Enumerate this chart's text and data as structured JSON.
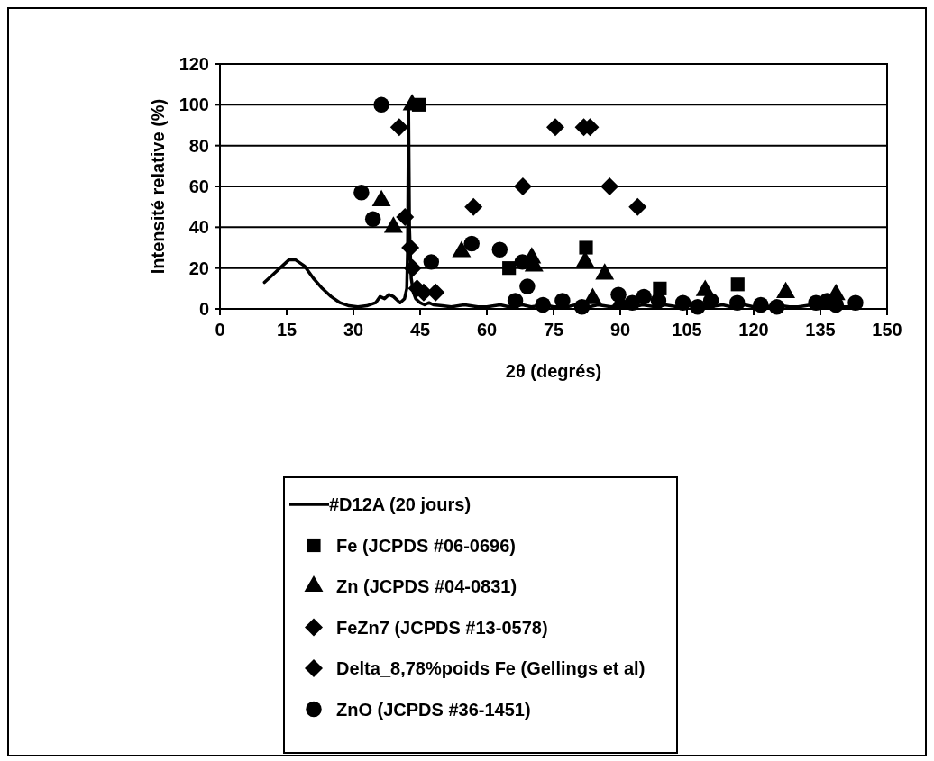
{
  "chart_data": {
    "type": "scatter",
    "xlabel": "2θ (degrés)",
    "ylabel": "Intensité relative (%)",
    "xlim": [
      0,
      150
    ],
    "xticks": [
      0,
      15,
      30,
      45,
      60,
      75,
      90,
      105,
      120,
      135,
      150
    ],
    "ylim": [
      0,
      120
    ],
    "yticks": [
      0,
      20,
      40,
      60,
      80,
      100,
      120
    ],
    "grid": "y",
    "legend": "bottom",
    "series": [
      {
        "name": "#D12A (20 jours)",
        "type": "line",
        "marker": "none",
        "color": "#000000",
        "x": [
          10,
          12,
          14,
          15.5,
          17,
          19,
          21,
          23,
          25,
          27,
          29,
          31,
          33,
          35,
          36,
          37,
          38,
          39,
          40,
          40.5,
          41.5,
          42,
          42.2,
          42.4,
          42.6,
          43,
          43.5,
          44,
          45,
          46,
          47,
          48,
          50,
          52,
          55,
          58,
          60,
          63,
          65,
          68,
          70,
          73,
          75,
          78,
          80,
          83,
          85,
          88,
          90,
          93,
          95,
          98,
          100,
          103,
          105,
          108,
          110,
          113,
          115,
          118,
          120,
          123,
          125,
          128,
          130,
          133,
          135,
          138,
          140,
          143
        ],
        "values": [
          13,
          17,
          21,
          24,
          24,
          21,
          15,
          10,
          6,
          3,
          1.5,
          1,
          1.5,
          3,
          6,
          5,
          7,
          6,
          4,
          3,
          5,
          10,
          30,
          100,
          40,
          15,
          8,
          5,
          3,
          2,
          3,
          2,
          1.5,
          1,
          2,
          1,
          1,
          2,
          1,
          2,
          1,
          2,
          1,
          1,
          2,
          1,
          2,
          1,
          2,
          1,
          2,
          1,
          2,
          1,
          2,
          1,
          1,
          2,
          1,
          2,
          1,
          1,
          2,
          1,
          1,
          2,
          1,
          2,
          1,
          1
        ]
      },
      {
        "name": "Fe (JCPDS #06-0696)",
        "marker": "square",
        "color": "#000000",
        "x": [
          44.7,
          65,
          82.3,
          98.9,
          116.4
        ],
        "values": [
          100,
          20,
          30,
          10,
          12
        ]
      },
      {
        "name": "Zn (JCPDS #04-0831)",
        "marker": "triangle",
        "color": "#000000",
        "x": [
          36.3,
          39,
          43.2,
          54.3,
          70.1,
          70.6,
          82.1,
          83.8,
          86.5,
          90,
          109.1,
          127.2,
          138.5
        ],
        "values": [
          53,
          40,
          100,
          28,
          25,
          21,
          23,
          5,
          17,
          3,
          9,
          8,
          7
        ]
      },
      {
        "name": "FeZn7 (JCPDS #13-0578)",
        "marker": "diamond",
        "color": "#000000",
        "x": [
          41.6,
          42.8,
          43.3,
          44.3,
          45.8,
          48.5
        ],
        "values": [
          45,
          30,
          20,
          10,
          8,
          8
        ]
      },
      {
        "name": "Delta_8,78%poids Fe (Gellings et al)",
        "marker": "diamond",
        "color": "#000000",
        "x": [
          40.3,
          57,
          68.1,
          75.4,
          81.8,
          83.2,
          87.6,
          93.9
        ],
        "values": [
          89,
          50,
          60,
          89,
          89,
          89,
          60,
          50
        ]
      },
      {
        "name": "ZnO (JCPDS #36-1451)",
        "marker": "circle",
        "color": "#000000",
        "x": [
          31.8,
          34.4,
          36.3,
          47.5,
          56.6,
          62.9,
          66.4,
          68,
          69.1,
          72.6,
          77,
          81.4,
          89.6,
          92.7,
          95.3,
          98.6,
          104.1,
          107.4,
          110.4,
          116.3,
          121.6,
          125.2,
          134,
          136.5,
          138.5,
          142.9
        ],
        "values": [
          57,
          44,
          100,
          23,
          32,
          29,
          4,
          23,
          11,
          2,
          4,
          1,
          7,
          3,
          6,
          4,
          3,
          1,
          4,
          3,
          2,
          1,
          3,
          4,
          2,
          3
        ]
      }
    ]
  }
}
